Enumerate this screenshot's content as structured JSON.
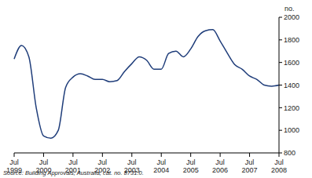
{
  "chart_data": {
    "type": "line",
    "y_label": "no.",
    "source": "Source: Building Approvals, Australia, cat. no. 8731.0.",
    "categories": [
      "Jul 1999",
      null,
      null,
      null,
      "Jul 2000",
      null,
      null,
      null,
      "Jul 2001",
      null,
      null,
      null,
      "Jul 2002",
      null,
      null,
      null,
      "Jul 2003",
      null,
      null,
      null,
      "Jul 2004",
      null,
      null,
      null,
      "Jul 2005",
      null,
      null,
      null,
      "Jul 2006",
      null,
      null,
      null,
      "Jul 2007",
      null,
      null,
      null,
      "Jul 2008"
    ],
    "values": [
      1630,
      1750,
      1650,
      1200,
      950,
      930,
      1000,
      1380,
      1470,
      1500,
      1480,
      1450,
      1450,
      1430,
      1440,
      1520,
      1590,
      1650,
      1620,
      1540,
      1540,
      1680,
      1700,
      1650,
      1720,
      1830,
      1880,
      1890,
      1790,
      1680,
      1580,
      1540,
      1480,
      1450,
      1400,
      1390,
      1400
    ],
    "color": "#1f3d7a",
    "ylim": [
      800,
      2000
    ],
    "yticks": [
      800,
      1000,
      1200,
      1400,
      1600,
      1800,
      2000
    ],
    "grid": false
  }
}
